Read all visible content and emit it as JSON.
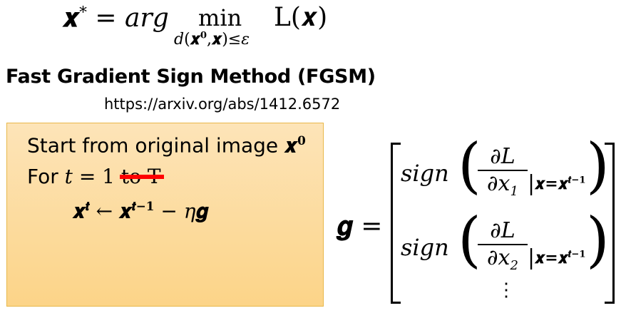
{
  "objective": {
    "lhs": "𝒙",
    "lhs_sup": "*",
    "eq": "=",
    "arg": "arg",
    "min": "min",
    "constraint_d": "d",
    "constraint_x0": "𝒙",
    "constraint_x0_sup": "𝟎",
    "constraint_x": "𝒙",
    "constraint_le": "≤",
    "constraint_eps": "ε",
    "loss": "L(𝒙)"
  },
  "title": "Fast Gradient Sign Method (FGSM)",
  "url": "https://arxiv.org/abs/1412.6572",
  "algorithm": {
    "line1_text": "Start from original image ",
    "line1_var": "𝒙",
    "line1_sup": "𝟎",
    "line2_for": "For ",
    "line2_t": "t",
    "line2_eq": " = 1 ",
    "line2_struck": "to T",
    "line3_lhs": "𝒙",
    "line3_lhs_sup": "𝒕",
    "line3_arrow": "←",
    "line3_rhs": "𝒙",
    "line3_rhs_sup": "𝒕−𝟏",
    "line3_minus": "−",
    "line3_eta": "η",
    "line3_g": "𝒈"
  },
  "gradient": {
    "g": "𝒈",
    "eq": "=",
    "rows": [
      {
        "sign": "sign",
        "num": "∂L",
        "den": "∂x",
        "den_sub": "1",
        "eval": "𝒙=𝒙",
        "eval_sup": "𝒕−𝟏"
      },
      {
        "sign": "sign",
        "num": "∂L",
        "den": "∂x",
        "den_sub": "2",
        "eval": "𝒙=𝒙",
        "eval_sup": "𝒕−𝟏"
      }
    ],
    "vdots": "⋮"
  }
}
